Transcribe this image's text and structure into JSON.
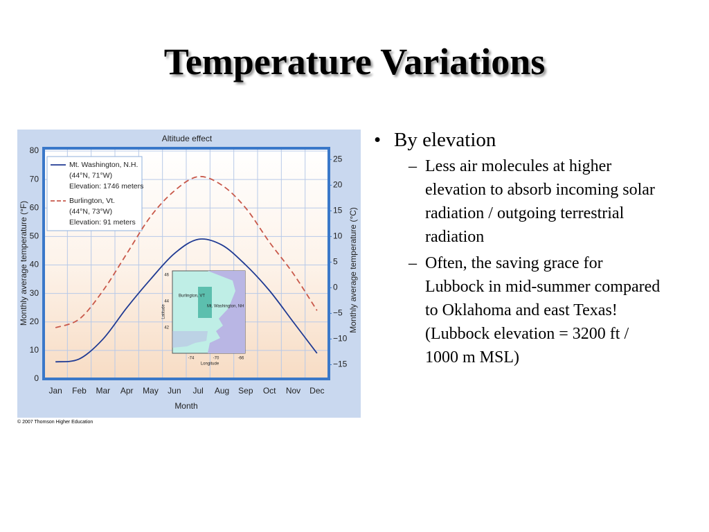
{
  "slide": {
    "title": "Temperature Variations",
    "bullets": [
      {
        "text": "By elevation",
        "sub": [
          "Less air molecules at higher elevation to absorb incoming solar radiation / outgoing terrestrial radiation",
          "Often, the saving grace for Lubbock in mid-summer compared to Oklahoma and east Texas! (Lubbock elevation = 3200 ft / 1000 m MSL)"
        ]
      }
    ],
    "credit": "© 2007 Thomson Higher Education"
  },
  "chart_data": {
    "type": "line",
    "title": "Altitude effect",
    "x_label": "Month",
    "y_label": "Monthly average temperature (°F)",
    "y2_label": "Monthly average temperature (°C)",
    "categories": [
      "Jan",
      "Feb",
      "Mar",
      "Apr",
      "May",
      "Jun",
      "Jul",
      "Aug",
      "Sep",
      "Oct",
      "Nov",
      "Dec"
    ],
    "series": [
      {
        "name": "Mt. Washington, N.H.",
        "location": "(44°N, 71°W)",
        "elevation": "Elevation: 1746 meters",
        "color": "#1f3a93",
        "dashed": false,
        "values": [
          6,
          7,
          14,
          25,
          35,
          44,
          49,
          47,
          40,
          31,
          20,
          9
        ]
      },
      {
        "name": "Burlington, Vt.",
        "location": "(44°N, 73°W)",
        "elevation": "Elevation: 91 meters",
        "color": "#c8584a",
        "dashed": true,
        "values": [
          18,
          21,
          31,
          44,
          57,
          66,
          71,
          68,
          60,
          48,
          37,
          24
        ]
      }
    ],
    "ylim": [
      0,
      80
    ],
    "yticks": [
      0,
      10,
      20,
      30,
      40,
      50,
      60,
      70,
      80
    ],
    "y2lim": [
      -17.78,
      26.67
    ],
    "y2ticks": [
      {
        "value": -15,
        "label": "−15"
      },
      {
        "value": -10,
        "label": "−10"
      },
      {
        "value": -5,
        "label": "−5"
      },
      0,
      5,
      10,
      15,
      20,
      25
    ],
    "grid": true,
    "legend": "upper left",
    "inset": {
      "lat_label": "Latitude",
      "lon_label": "Longitude",
      "lat_ticks": [
        46,
        44,
        42
      ],
      "lon_ticks": [
        -74,
        -70,
        -66
      ],
      "places": [
        "Burlington, VT",
        "Mt. Washington, NH"
      ]
    }
  }
}
